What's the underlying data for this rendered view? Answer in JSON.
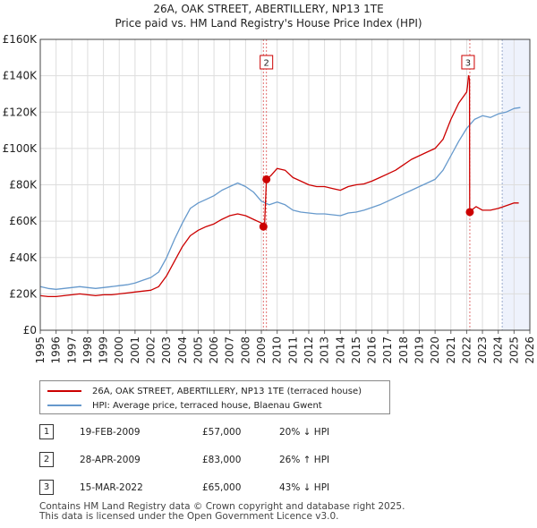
{
  "title": "26A, OAK STREET, ABERTILLERY, NP13 1TE",
  "subtitle": "Price paid vs. HM Land Registry's House Price Index (HPI)",
  "chart_data": {
    "type": "line",
    "x_range": [
      1995,
      2026
    ],
    "ylim": [
      0,
      160000
    ],
    "y_ticks": [
      0,
      20000,
      40000,
      60000,
      80000,
      100000,
      120000,
      140000,
      160000
    ],
    "y_tick_labels": [
      "£0",
      "£20K",
      "£40K",
      "£60K",
      "£80K",
      "£100K",
      "£120K",
      "£140K",
      "£160K"
    ],
    "x_ticks": [
      1995,
      1996,
      1997,
      1998,
      1999,
      2000,
      2001,
      2002,
      2003,
      2004,
      2005,
      2006,
      2007,
      2008,
      2009,
      2010,
      2011,
      2012,
      2013,
      2014,
      2015,
      2016,
      2017,
      2018,
      2019,
      2020,
      2021,
      2022,
      2023,
      2024,
      2025,
      2026
    ],
    "x_tick_labels": [
      "1995",
      "1996",
      "1997",
      "1998",
      "1999",
      "2000",
      "2001",
      "2002",
      "2003",
      "2004",
      "2005",
      "2006",
      "2007",
      "2008",
      "2009",
      "2010",
      "2011",
      "2012",
      "2013",
      "2014",
      "2015",
      "2016",
      "2017",
      "2018",
      "2019",
      "2020",
      "2021",
      "2022",
      "2023",
      "2024",
      "2025",
      "2026"
    ],
    "grid": true,
    "shaded_region": {
      "from": 2024.25,
      "to": 2026
    },
    "series": [
      {
        "name": "26A, OAK STREET, ABERTILLERY, NP13 1TE (terraced house)",
        "color": "#cc0000",
        "points": [
          [
            1995.0,
            19000
          ],
          [
            1995.5,
            18500
          ],
          [
            1996.0,
            18500
          ],
          [
            1996.5,
            19000
          ],
          [
            1997.0,
            19500
          ],
          [
            1997.5,
            20000
          ],
          [
            1998.0,
            19500
          ],
          [
            1998.5,
            19000
          ],
          [
            1999.0,
            19500
          ],
          [
            1999.5,
            19500
          ],
          [
            2000.0,
            20000
          ],
          [
            2000.5,
            20500
          ],
          [
            2001.0,
            21000
          ],
          [
            2001.5,
            21500
          ],
          [
            2002.0,
            22000
          ],
          [
            2002.5,
            24000
          ],
          [
            2003.0,
            30000
          ],
          [
            2003.5,
            38000
          ],
          [
            2004.0,
            46000
          ],
          [
            2004.5,
            52000
          ],
          [
            2005.0,
            55000
          ],
          [
            2005.5,
            57000
          ],
          [
            2006.0,
            58500
          ],
          [
            2006.5,
            61000
          ],
          [
            2007.0,
            63000
          ],
          [
            2007.5,
            64000
          ],
          [
            2008.0,
            63000
          ],
          [
            2008.5,
            61000
          ],
          [
            2009.0,
            59000
          ],
          [
            2009.13,
            57000
          ],
          [
            2009.2,
            58000
          ],
          [
            2009.32,
            83000
          ],
          [
            2009.6,
            85000
          ],
          [
            2010.0,
            89000
          ],
          [
            2010.5,
            88000
          ],
          [
            2011.0,
            84000
          ],
          [
            2011.5,
            82000
          ],
          [
            2012.0,
            80000
          ],
          [
            2012.5,
            79000
          ],
          [
            2013.0,
            79000
          ],
          [
            2013.5,
            78000
          ],
          [
            2014.0,
            77000
          ],
          [
            2014.5,
            79000
          ],
          [
            2015.0,
            80000
          ],
          [
            2015.5,
            80500
          ],
          [
            2016.0,
            82000
          ],
          [
            2016.5,
            84000
          ],
          [
            2017.0,
            86000
          ],
          [
            2017.5,
            88000
          ],
          [
            2018.0,
            91000
          ],
          [
            2018.5,
            94000
          ],
          [
            2019.0,
            96000
          ],
          [
            2019.5,
            98000
          ],
          [
            2020.0,
            100000
          ],
          [
            2020.5,
            105000
          ],
          [
            2021.0,
            116000
          ],
          [
            2021.5,
            125000
          ],
          [
            2022.0,
            131000
          ],
          [
            2022.05,
            134000
          ],
          [
            2022.12,
            140000
          ],
          [
            2022.18,
            138000
          ],
          [
            2022.19,
            65000
          ],
          [
            2022.3,
            66000
          ],
          [
            2022.6,
            68000
          ],
          [
            2023.0,
            66000
          ],
          [
            2023.5,
            66000
          ],
          [
            2024.0,
            67000
          ],
          [
            2024.5,
            68500
          ],
          [
            2025.0,
            70000
          ],
          [
            2025.3,
            70000
          ]
        ]
      },
      {
        "name": "HPI: Average price, terraced house, Blaenau Gwent",
        "color": "#6699cc",
        "points": [
          [
            1995.0,
            24000
          ],
          [
            1995.5,
            23000
          ],
          [
            1996.0,
            22500
          ],
          [
            1996.5,
            23000
          ],
          [
            1997.0,
            23500
          ],
          [
            1997.5,
            24000
          ],
          [
            1998.0,
            23500
          ],
          [
            1998.5,
            23000
          ],
          [
            1999.0,
            23500
          ],
          [
            1999.5,
            24000
          ],
          [
            2000.0,
            24500
          ],
          [
            2000.5,
            25000
          ],
          [
            2001.0,
            26000
          ],
          [
            2001.5,
            27500
          ],
          [
            2002.0,
            29000
          ],
          [
            2002.5,
            32000
          ],
          [
            2003.0,
            40000
          ],
          [
            2003.5,
            50000
          ],
          [
            2004.0,
            59000
          ],
          [
            2004.5,
            67000
          ],
          [
            2005.0,
            70000
          ],
          [
            2005.5,
            72000
          ],
          [
            2006.0,
            74000
          ],
          [
            2006.5,
            77000
          ],
          [
            2007.0,
            79000
          ],
          [
            2007.5,
            81000
          ],
          [
            2008.0,
            79000
          ],
          [
            2008.5,
            76000
          ],
          [
            2009.0,
            71000
          ],
          [
            2009.5,
            69000
          ],
          [
            2010.0,
            70500
          ],
          [
            2010.5,
            69000
          ],
          [
            2011.0,
            66000
          ],
          [
            2011.5,
            65000
          ],
          [
            2012.0,
            64500
          ],
          [
            2012.5,
            64000
          ],
          [
            2013.0,
            64000
          ],
          [
            2013.5,
            63500
          ],
          [
            2014.0,
            63000
          ],
          [
            2014.5,
            64500
          ],
          [
            2015.0,
            65000
          ],
          [
            2015.5,
            66000
          ],
          [
            2016.0,
            67500
          ],
          [
            2016.5,
            69000
          ],
          [
            2017.0,
            71000
          ],
          [
            2017.5,
            73000
          ],
          [
            2018.0,
            75000
          ],
          [
            2018.5,
            77000
          ],
          [
            2019.0,
            79000
          ],
          [
            2019.5,
            81000
          ],
          [
            2020.0,
            83000
          ],
          [
            2020.5,
            88000
          ],
          [
            2021.0,
            96000
          ],
          [
            2021.5,
            104000
          ],
          [
            2022.0,
            111000
          ],
          [
            2022.5,
            116000
          ],
          [
            2023.0,
            118000
          ],
          [
            2023.5,
            117000
          ],
          [
            2024.0,
            119000
          ],
          [
            2024.5,
            120000
          ],
          [
            2025.0,
            122000
          ],
          [
            2025.4,
            122500
          ]
        ]
      }
    ],
    "annotations": [
      {
        "label": "1",
        "x": 2009.13,
        "value": 57000
      },
      {
        "label": "2",
        "x": 2009.32,
        "value": 83000
      },
      {
        "label": "3",
        "x": 2022.2,
        "value": 65000
      }
    ]
  },
  "legend": {
    "items": [
      {
        "label": "26A, OAK STREET, ABERTILLERY, NP13 1TE (terraced house)",
        "color": "#cc0000"
      },
      {
        "label": "HPI: Average price, terraced house, Blaenau Gwent",
        "color": "#6699cc"
      }
    ]
  },
  "sales": [
    {
      "num": "1",
      "date": "19-FEB-2009",
      "price": "£57,000",
      "hpi": "20% ↓ HPI"
    },
    {
      "num": "2",
      "date": "28-APR-2009",
      "price": "£83,000",
      "hpi": "26% ↑ HPI"
    },
    {
      "num": "3",
      "date": "15-MAR-2022",
      "price": "£65,000",
      "hpi": "43% ↓ HPI"
    }
  ],
  "footer": {
    "line1": "Contains HM Land Registry data © Crown copyright and database right 2025.",
    "line2": "This data is licensed under the Open Government Licence v3.0."
  }
}
